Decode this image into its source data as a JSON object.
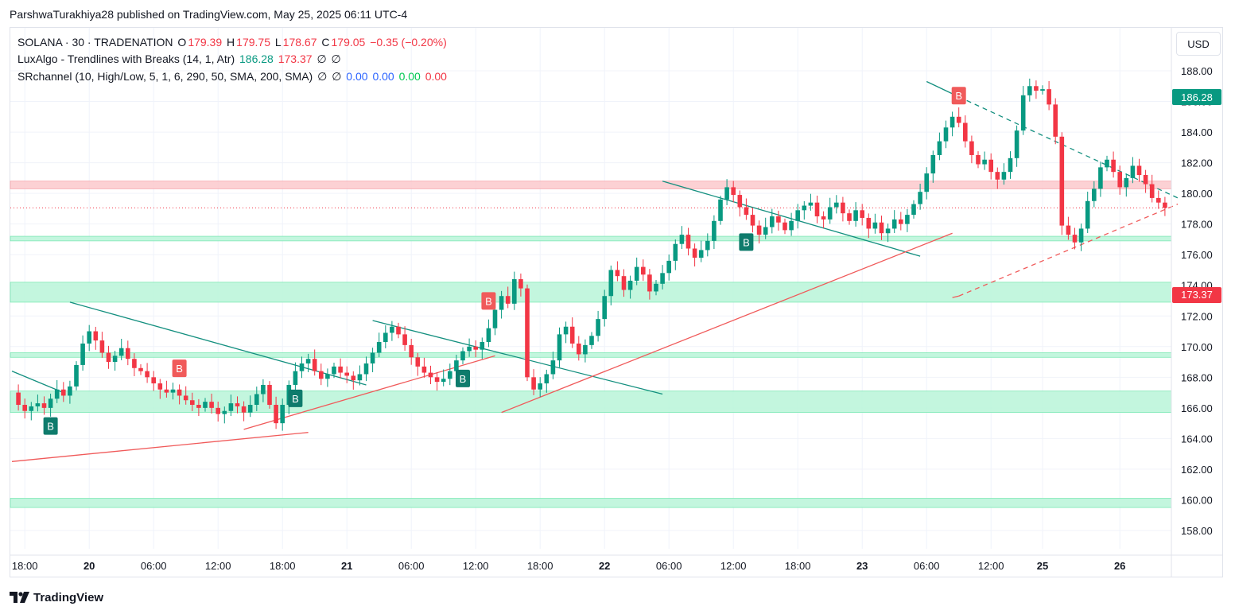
{
  "attribution": "ParshwaTurakhiya28 published on TradingView.com, May 25, 2025 06:11 UTC-4",
  "legend": {
    "symbol_line": "SOLANA · 30 · TRADENATION",
    "o_label": "O",
    "o_value": "179.39",
    "h_label": "H",
    "h_value": "179.75",
    "l_label": "L",
    "l_value": "178.67",
    "c_label": "C",
    "c_value": "179.05",
    "change": "−0.35 (−0.20%)",
    "indicator1_name": "LuxAlgo - Trendlines with Breaks (14, 1, Atr)",
    "indicator1_v1": "186.28",
    "indicator1_v2": "173.37",
    "indicator1_v3": "∅",
    "indicator1_v4": "∅",
    "indicator2_name": "SRchannel (10, High/Low, 5, 1, 6, 290, 50, SMA, 200, SMA)",
    "indicator2_v1": "∅",
    "indicator2_v2": "∅",
    "indicator2_v3": "0.00",
    "indicator2_v4": "0.00",
    "indicator2_v5": "0.00",
    "indicator2_v6": "0.00"
  },
  "currency": "USD",
  "price_tags": {
    "upper": "186.28",
    "lower": "173.37"
  },
  "footer": {
    "brand": "TradingView"
  },
  "colors": {
    "up": "#089981",
    "down": "#f23645",
    "zone": "#b9f4d8",
    "zone_red": "#fcc9cc",
    "grid": "#f0f3fa"
  },
  "chart_data": {
    "type": "candlestick",
    "title": "SOLANA · 30 · TRADENATION",
    "ylim": [
      156.8,
      189.5
    ],
    "y_ticks": [
      "158.00",
      "160.00",
      "162.00",
      "164.00",
      "166.00",
      "168.00",
      "170.00",
      "172.00",
      "174.00",
      "176.00",
      "178.00",
      "180.00",
      "182.00",
      "184.00",
      "186.00",
      "188.00"
    ],
    "x_ticks": [
      {
        "label": "18:00",
        "i": 2
      },
      {
        "label": "20",
        "i": 12
      },
      {
        "label": "06:00",
        "i": 22
      },
      {
        "label": "12:00",
        "i": 32
      },
      {
        "label": "18:00",
        "i": 42
      },
      {
        "label": "21",
        "i": 52
      },
      {
        "label": "06:00",
        "i": 62
      },
      {
        "label": "12:00",
        "i": 72
      },
      {
        "label": "18:00",
        "i": 82
      },
      {
        "label": "22",
        "i": 92
      },
      {
        "label": "06:00",
        "i": 102
      },
      {
        "label": "12:00",
        "i": 112
      },
      {
        "label": "18:00",
        "i": 122
      },
      {
        "label": "23",
        "i": 132
      },
      {
        "label": "06:00",
        "i": 142
      },
      {
        "label": "12:00",
        "i": 152
      },
      {
        "label": "25",
        "i": 160
      },
      {
        "label": "26",
        "i": 172
      }
    ],
    "sr_zones": [
      {
        "low": 180.3,
        "high": 180.8,
        "color": "red"
      },
      {
        "low": 176.9,
        "high": 177.2,
        "color": "green"
      },
      {
        "low": 172.9,
        "high": 174.2,
        "color": "green"
      },
      {
        "low": 169.3,
        "high": 169.6,
        "color": "green"
      },
      {
        "low": 165.7,
        "high": 167.1,
        "color": "green"
      },
      {
        "low": 159.5,
        "high": 160.1,
        "color": "green"
      }
    ],
    "last_price_line": 179.05,
    "closes": [
      167,
      166.2,
      165.8,
      166.1,
      166.3,
      166.0,
      166.6,
      167.2,
      166.8,
      167.4,
      168.8,
      170.2,
      171.0,
      170.4,
      169.6,
      169.0,
      169.4,
      169.9,
      169.2,
      168.6,
      168.4,
      168.0,
      167.6,
      167.2,
      167.0,
      167.2,
      166.8,
      166.5,
      166.2,
      166.0,
      166.4,
      166.0,
      165.6,
      165.8,
      166.3,
      166.1,
      165.7,
      166.2,
      166.9,
      167.5,
      166.2,
      165.0,
      166.2,
      167.5,
      168.4,
      168.9,
      169.2,
      168.4,
      167.9,
      168.2,
      168.7,
      168.3,
      168.1,
      167.8,
      168.2,
      168.9,
      169.6,
      170.3,
      170.9,
      171.3,
      170.8,
      170.1,
      169.3,
      168.7,
      168.3,
      168.0,
      167.7,
      167.9,
      168.4,
      169.1,
      169.7,
      170.0,
      169.8,
      170.3,
      171.2,
      172.4,
      173.3,
      172.8,
      174.4,
      173.8,
      168.0,
      167.2,
      167.6,
      168.2,
      169.1,
      170.8,
      171.3,
      170.2,
      169.5,
      170.1,
      170.7,
      171.8,
      173.3,
      175.0,
      174.6,
      173.7,
      174.3,
      175.2,
      174.7,
      173.6,
      174.1,
      174.8,
      175.6,
      176.7,
      177.3,
      176.4,
      175.8,
      176.3,
      176.9,
      178.2,
      179.6,
      180.4,
      179.9,
      179.1,
      178.6,
      177.9,
      177.3,
      177.8,
      178.5,
      178.1,
      177.6,
      178.2,
      178.9,
      179.2,
      179.4,
      178.5,
      178.3,
      179.1,
      179.4,
      178.7,
      178.2,
      178.9,
      178.4,
      177.7,
      178.1,
      177.4,
      177.7,
      178.3,
      178.0,
      178.6,
      179.3,
      180.1,
      181.3,
      182.5,
      183.4,
      184.3,
      185.0,
      184.6,
      183.4,
      182.5,
      181.9,
      182.2,
      181.4,
      180.9,
      181.4,
      182.3,
      184.1,
      186.4,
      187.0,
      186.7,
      186.8,
      185.8,
      183.7,
      177.9,
      177.3,
      176.8,
      177.7,
      179.5,
      180.3,
      181.7,
      182.2,
      181.4,
      180.4,
      181.0,
      181.8,
      181.2,
      180.6,
      179.7,
      179.4,
      179.05
    ]
  },
  "markers": [
    {
      "label": "B",
      "type": "buy",
      "i": 6
    },
    {
      "label": "B",
      "type": "sell",
      "i": 26
    },
    {
      "label": "B",
      "type": "buy",
      "i": 44
    },
    {
      "label": "B",
      "type": "buy",
      "i": 70
    },
    {
      "label": "B",
      "type": "sell",
      "i": 74
    },
    {
      "label": "B",
      "type": "buy",
      "i": 114
    },
    {
      "label": "B",
      "type": "sell",
      "i": 147
    }
  ],
  "trendlines": [
    {
      "kind": "teal",
      "from": {
        "i": 0,
        "p": 168.4
      },
      "to": {
        "i": 8,
        "p": 167.0
      }
    },
    {
      "kind": "teal",
      "from": {
        "i": 9,
        "p": 172.9
      },
      "to": {
        "i": 55,
        "p": 167.5
      }
    },
    {
      "kind": "teal",
      "from": {
        "i": 56,
        "p": 171.7
      },
      "to": {
        "i": 101,
        "p": 166.9
      }
    },
    {
      "kind": "teal",
      "from": {
        "i": 101,
        "p": 180.8
      },
      "to": {
        "i": 141,
        "p": 175.9
      }
    },
    {
      "kind": "teal",
      "from": {
        "i": 142,
        "p": 187.3
      },
      "to": {
        "i": 147,
        "p": 186.3
      }
    },
    {
      "kind": "teal_dash",
      "from": {
        "i": 147,
        "p": 186.3
      },
      "to": {
        "i": 181,
        "p": 179.7
      }
    },
    {
      "kind": "red",
      "from": {
        "i": 0,
        "p": 162.5
      },
      "to": {
        "i": 46,
        "p": 164.4
      }
    },
    {
      "kind": "red",
      "from": {
        "i": 36,
        "p": 164.6
      },
      "to": {
        "i": 75,
        "p": 169.4
      }
    },
    {
      "kind": "red",
      "from": {
        "i": 76,
        "p": 165.7
      },
      "to": {
        "i": 146,
        "p": 177.4
      }
    },
    {
      "kind": "red",
      "from": {
        "i": 146,
        "p": 173.2
      },
      "to": {
        "i": 147,
        "p": 173.3
      }
    },
    {
      "kind": "red_dash",
      "from": {
        "i": 147,
        "p": 173.3
      },
      "to": {
        "i": 181,
        "p": 179.3
      }
    }
  ]
}
